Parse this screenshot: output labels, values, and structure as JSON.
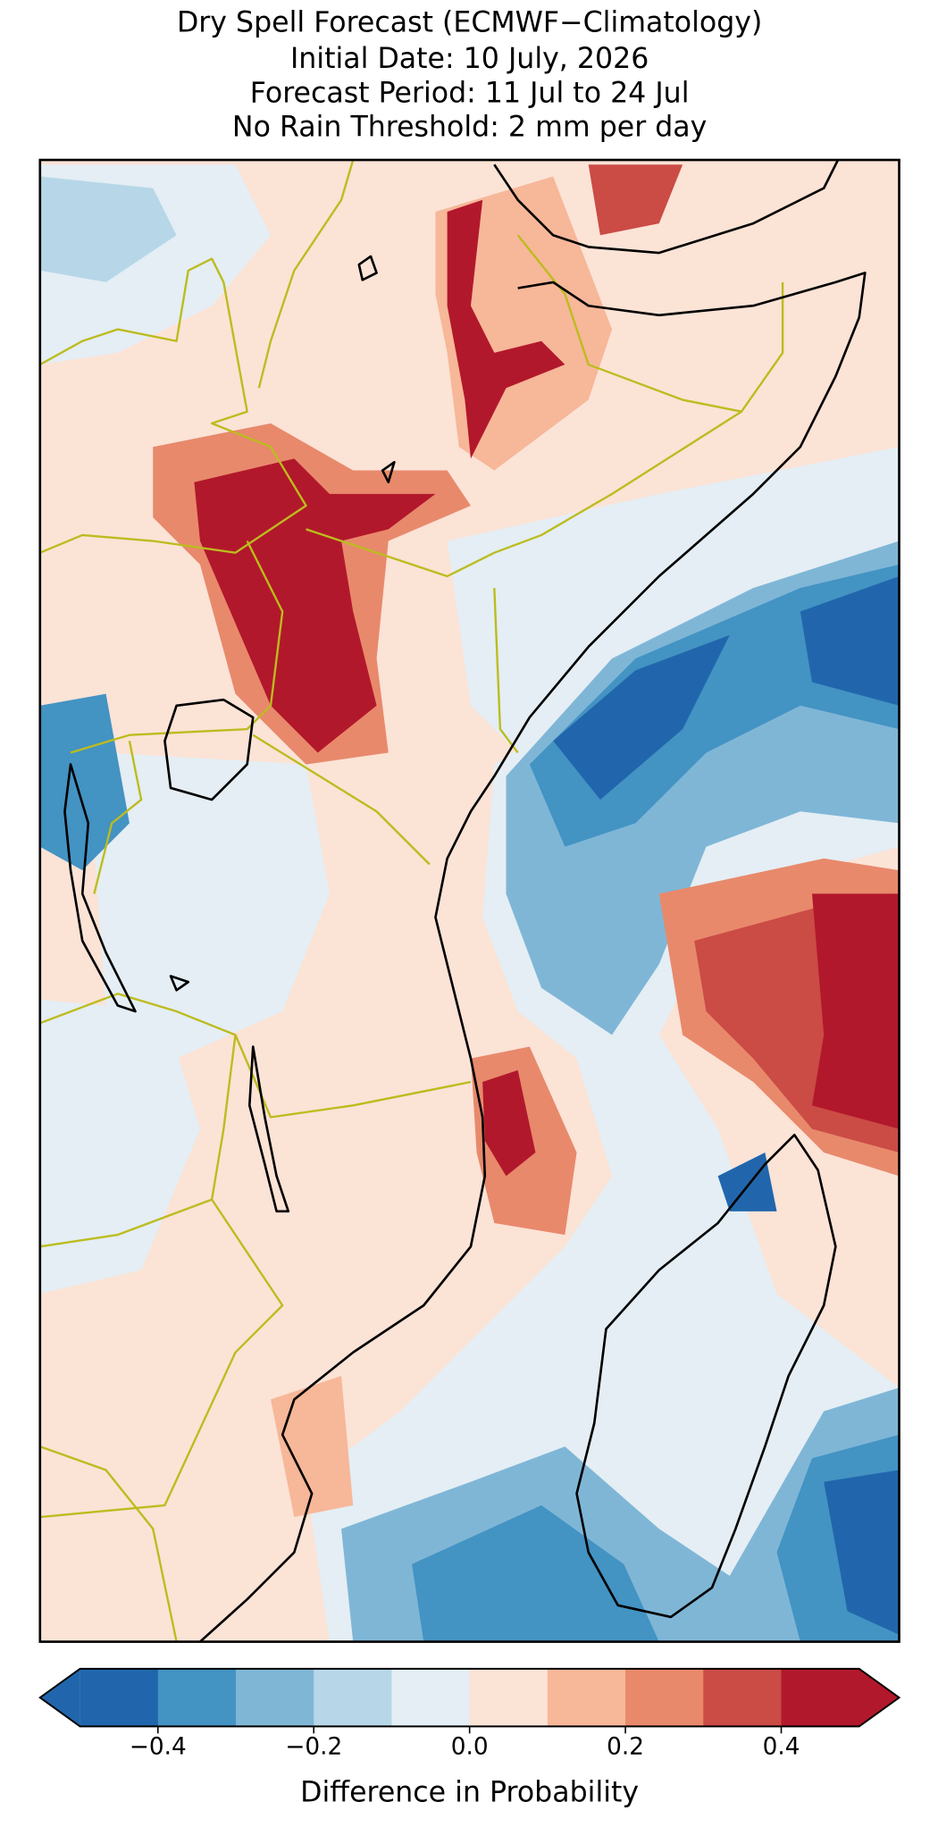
{
  "map": {
    "title": [
      "Dry Spell Forecast (ECMWF−Climatology)",
      "Initial Date: 10 July, 2026",
      "Forecast Period: 11 Jul to 24 Jul",
      "No Rain Threshold: 2 mm per day"
    ],
    "colorbar": {
      "label": "Difference in Probability",
      "levels": [
        -0.5,
        -0.4,
        -0.3,
        -0.2,
        -0.1,
        0,
        0.1,
        0.2,
        0.3,
        0.4,
        0.5
      ],
      "colors": [
        "#2166ac",
        "#4393c3",
        "#7fb6d6",
        "#b7d7e8",
        "#e4eef4",
        "#fbe3d6",
        "#f7b799",
        "#e8896c",
        "#cb4b45",
        "#b2182b"
      ],
      "ticks": [
        {
          "value": -0.4,
          "label": "−0.4"
        },
        {
          "value": -0.2,
          "label": "−0.2"
        },
        {
          "value": 0,
          "label": "0.0"
        },
        {
          "value": 0.2,
          "label": "0.2"
        },
        {
          "value": 0.4,
          "label": "0.4"
        }
      ]
    }
  }
}
